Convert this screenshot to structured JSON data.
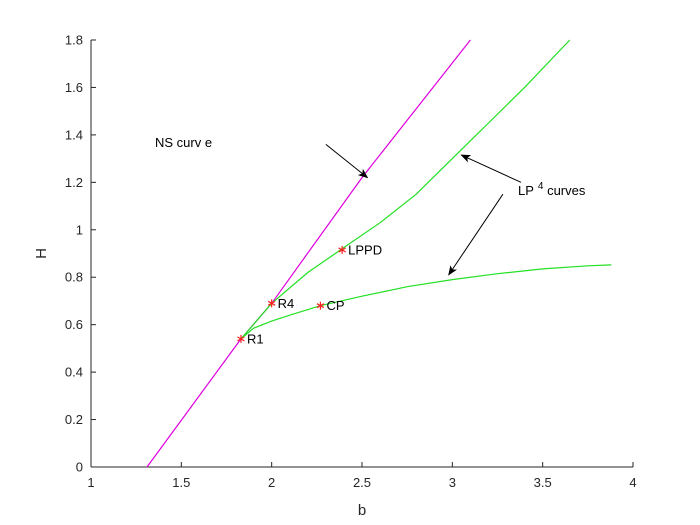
{
  "chart_data": {
    "type": "line",
    "title": "",
    "xlabel": "b",
    "ylabel": "H",
    "xlim": [
      1,
      4
    ],
    "ylim": [
      0,
      1.8
    ],
    "x_ticks": [
      "1",
      "1.5",
      "2",
      "2.5",
      "3",
      "3.5",
      "4"
    ],
    "y_ticks": [
      "0",
      "0.2",
      "0.4",
      "0.6",
      "0.8",
      "1",
      "1.2",
      "1.4",
      "1.6",
      "1.8"
    ],
    "grid": false,
    "series": [
      {
        "color": "#e000e0",
        "x": [
          1.31,
          1.83,
          2.0,
          2.5,
          3.1
        ],
        "y": [
          0.0,
          0.54,
          0.69,
          1.22,
          1.8
        ]
      },
      {
        "color": "#22e022",
        "x": [
          1.83,
          2.0,
          2.2,
          2.39,
          2.6,
          2.8,
          3.0,
          3.2,
          3.4,
          3.65
        ],
        "y": [
          0.54,
          0.69,
          0.82,
          0.92,
          1.03,
          1.15,
          1.3,
          1.45,
          1.6,
          1.8
        ]
      },
      {
        "color": "#22e022",
        "x": [
          1.83,
          1.9,
          2.0,
          2.1,
          2.27,
          2.5,
          2.75,
          3.0,
          3.25,
          3.5,
          3.75,
          3.88
        ],
        "y": [
          0.54,
          0.585,
          0.615,
          0.64,
          0.68,
          0.72,
          0.76,
          0.79,
          0.815,
          0.835,
          0.848,
          0.852
        ]
      }
    ],
    "points": [
      {
        "label": "R1",
        "x": 1.83,
        "y": 0.54
      },
      {
        "label": "R4",
        "x": 2.0,
        "y": 0.69
      },
      {
        "label": "LPPD",
        "x": 2.39,
        "y": 0.915
      },
      {
        "label": "CP",
        "x": 2.27,
        "y": 0.68
      }
    ],
    "point_color": "#ff2020",
    "annotations": [
      {
        "text": "NS curv e",
        "arrows": [
          {
            "from": [
              2.3,
              1.36
            ],
            "to": [
              2.53,
              1.22
            ]
          }
        ]
      },
      {
        "text": "LP",
        "superscript": "4",
        "suffix": " curves",
        "arrows": [
          {
            "from": [
              3.38,
              1.2
            ],
            "to": [
              3.05,
              1.315
            ]
          },
          {
            "from": [
              3.28,
              1.15
            ],
            "to": [
              2.98,
              0.81
            ]
          }
        ]
      }
    ]
  }
}
